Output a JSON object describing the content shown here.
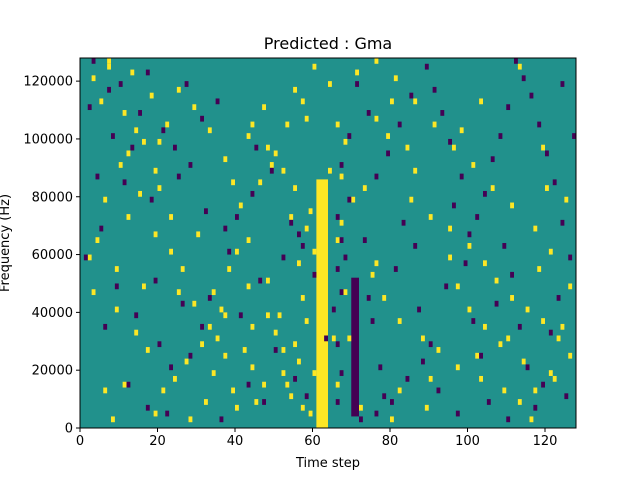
{
  "chart_data": {
    "type": "heatmap",
    "title": "Predicted : Gma",
    "xlabel": "Time step",
    "ylabel": "Frequency (Hz)",
    "xlim": [
      0,
      128
    ],
    "ylim": [
      0,
      128000
    ],
    "x_ticks": [
      0,
      20,
      40,
      60,
      80,
      100,
      120
    ],
    "y_ticks": [
      0,
      20000,
      40000,
      60000,
      80000,
      100000,
      120000
    ],
    "grid": false,
    "colormap": {
      "background": "#21918c",
      "high": "#fde725",
      "low": "#440154"
    },
    "n_time_steps": 128,
    "n_freq_bins": 64,
    "freq_bin_hz": 2000,
    "high_band": {
      "x_start": 61,
      "x_end": 64,
      "y_start_hz": 0,
      "y_end_hz": 86000
    },
    "low_band": {
      "x_start": 70,
      "x_end": 72,
      "y_start_hz": 4000,
      "y_end_hz": 52000
    },
    "cells_high": [
      [
        7,
        126000
      ],
      [
        7,
        124000
      ],
      [
        3,
        120000
      ],
      [
        5,
        112000
      ],
      [
        13,
        122000
      ],
      [
        18,
        114000
      ],
      [
        11,
        108000
      ],
      [
        14,
        102000
      ],
      [
        12,
        94000
      ],
      [
        10,
        90000
      ],
      [
        16,
        98000
      ],
      [
        20,
        98000
      ],
      [
        22,
        104000
      ],
      [
        19,
        88000
      ],
      [
        15,
        80000
      ],
      [
        20,
        82000
      ],
      [
        6,
        78000
      ],
      [
        12,
        72000
      ],
      [
        23,
        72000
      ],
      [
        30,
        66000
      ],
      [
        4,
        64000
      ],
      [
        2,
        58000
      ],
      [
        9,
        54000
      ],
      [
        16,
        48000
      ],
      [
        25,
        46000
      ],
      [
        29,
        42000
      ],
      [
        34,
        46000
      ],
      [
        38,
        54000
      ],
      [
        40,
        60000
      ],
      [
        43,
        64000
      ],
      [
        37,
        38000
      ],
      [
        33,
        34000
      ],
      [
        31,
        28000
      ],
      [
        27,
        22000
      ],
      [
        24,
        16000
      ],
      [
        21,
        12000
      ],
      [
        19,
        4000
      ],
      [
        6,
        12000
      ],
      [
        11,
        14000
      ],
      [
        35,
        30000
      ],
      [
        42,
        26000
      ],
      [
        44,
        20000
      ],
      [
        39,
        12000
      ],
      [
        40,
        6000
      ],
      [
        45,
        8000
      ],
      [
        47,
        14000
      ],
      [
        52,
        18000
      ],
      [
        55,
        28000
      ],
      [
        51,
        38000
      ],
      [
        57,
        44000
      ],
      [
        48,
        50000
      ],
      [
        56,
        56000
      ],
      [
        60,
        60000
      ],
      [
        58,
        68000
      ],
      [
        54,
        72000
      ],
      [
        46,
        84000
      ],
      [
        49,
        90000
      ],
      [
        50,
        94000
      ],
      [
        39,
        84000
      ],
      [
        41,
        76000
      ],
      [
        53,
        104000
      ],
      [
        57,
        112000
      ],
      [
        58,
        106000
      ],
      [
        66,
        104000
      ],
      [
        68,
        98000
      ],
      [
        76,
        106000
      ],
      [
        80,
        112000
      ],
      [
        79,
        100000
      ],
      [
        73,
        82000
      ],
      [
        85,
        78000
      ],
      [
        90,
        72000
      ],
      [
        95,
        68000
      ],
      [
        100,
        62000
      ],
      [
        104,
        56000
      ],
      [
        107,
        50000
      ],
      [
        111,
        44000
      ],
      [
        115,
        40000
      ],
      [
        119,
        36000
      ],
      [
        123,
        30000
      ],
      [
        126,
        24000
      ],
      [
        121,
        18000
      ],
      [
        117,
        12000
      ],
      [
        113,
        8000
      ],
      [
        109,
        12000
      ],
      [
        103,
        16000
      ],
      [
        97,
        20000
      ],
      [
        92,
        26000
      ],
      [
        88,
        30000
      ],
      [
        82,
        36000
      ],
      [
        78,
        44000
      ],
      [
        75,
        52000
      ],
      [
        76,
        56000
      ],
      [
        70,
        78000
      ],
      [
        67,
        86000
      ],
      [
        64,
        88000
      ],
      [
        66,
        64000
      ],
      [
        67,
        70000
      ],
      [
        68,
        46000
      ],
      [
        69,
        30000
      ],
      [
        66,
        14000
      ],
      [
        57,
        6000
      ],
      [
        59,
        4000
      ],
      [
        62,
        2000
      ],
      [
        72,
        6000
      ],
      [
        82,
        12000
      ],
      [
        90,
        16000
      ],
      [
        102,
        24000
      ],
      [
        110,
        30000
      ],
      [
        124,
        34000
      ],
      [
        126,
        48000
      ],
      [
        121,
        60000
      ],
      [
        117,
        68000
      ],
      [
        111,
        76000
      ],
      [
        106,
        82000
      ],
      [
        101,
        90000
      ],
      [
        96,
        96000
      ],
      [
        91,
        104000
      ],
      [
        86,
        112000
      ],
      [
        81,
        120000
      ],
      [
        76,
        126000
      ],
      [
        71,
        122000
      ],
      [
        64,
        118000
      ],
      [
        60,
        124000
      ],
      [
        55,
        116000
      ],
      [
        47,
        110000
      ],
      [
        43,
        100000
      ],
      [
        37,
        92000
      ],
      [
        33,
        102000
      ],
      [
        29,
        110000
      ],
      [
        25,
        116000
      ],
      [
        119,
        96000
      ],
      [
        120,
        82000
      ],
      [
        103,
        112000
      ],
      [
        98,
        102000
      ],
      [
        125,
        78000
      ],
      [
        118,
        54000
      ],
      [
        113,
        124000
      ],
      [
        84,
        96000
      ],
      [
        86,
        88000
      ],
      [
        95,
        58000
      ],
      [
        97,
        48000
      ],
      [
        100,
        40000
      ],
      [
        104,
        34000
      ],
      [
        108,
        28000
      ],
      [
        114,
        22000
      ],
      [
        122,
        16000
      ],
      [
        116,
        2000
      ],
      [
        89,
        6000
      ],
      [
        80,
        2000
      ],
      [
        65,
        30000
      ],
      [
        58,
        36000
      ],
      [
        56,
        22000
      ],
      [
        53,
        14000
      ],
      [
        44,
        34000
      ],
      [
        36,
        40000
      ],
      [
        26,
        54000
      ],
      [
        23,
        60000
      ],
      [
        19,
        66000
      ],
      [
        17,
        26000
      ],
      [
        14,
        32000
      ],
      [
        9,
        40000
      ],
      [
        3,
        46000
      ],
      [
        8,
        2000
      ],
      [
        28,
        2000
      ],
      [
        32,
        8000
      ],
      [
        34,
        18000
      ],
      [
        37,
        24000
      ],
      [
        43,
        48000
      ],
      [
        48,
        38000
      ],
      [
        50,
        32000
      ],
      [
        52,
        26000
      ],
      [
        54,
        10000
      ],
      [
        44,
        104000
      ],
      [
        48,
        96000
      ],
      [
        52,
        88000
      ],
      [
        55,
        82000
      ],
      [
        59,
        74000
      ],
      [
        60,
        18000
      ]
    ],
    "cells_low": [
      [
        3,
        126000
      ],
      [
        10,
        118000
      ],
      [
        2,
        110000
      ],
      [
        17,
        122000
      ],
      [
        8,
        100000
      ],
      [
        13,
        96000
      ],
      [
        21,
        102000
      ],
      [
        27,
        118000
      ],
      [
        31,
        106000
      ],
      [
        35,
        112000
      ],
      [
        11,
        84000
      ],
      [
        18,
        78000
      ],
      [
        25,
        86000
      ],
      [
        32,
        74000
      ],
      [
        37,
        68000
      ],
      [
        45,
        96000
      ],
      [
        49,
        88000
      ],
      [
        54,
        70000
      ],
      [
        57,
        62000
      ],
      [
        60,
        52000
      ],
      [
        5,
        68000
      ],
      [
        1,
        58000
      ],
      [
        9,
        48000
      ],
      [
        14,
        38000
      ],
      [
        20,
        28000
      ],
      [
        23,
        20000
      ],
      [
        6,
        34000
      ],
      [
        12,
        14000
      ],
      [
        17,
        6000
      ],
      [
        22,
        4000
      ],
      [
        28,
        24000
      ],
      [
        33,
        44000
      ],
      [
        38,
        60000
      ],
      [
        41,
        38000
      ],
      [
        46,
        50000
      ],
      [
        50,
        26000
      ],
      [
        55,
        16000
      ],
      [
        58,
        10000
      ],
      [
        63,
        30000
      ],
      [
        65,
        40000
      ],
      [
        68,
        58000
      ],
      [
        69,
        78000
      ],
      [
        73,
        64000
      ],
      [
        74,
        44000
      ],
      [
        75,
        36000
      ],
      [
        77,
        20000
      ],
      [
        78,
        10000
      ],
      [
        81,
        54000
      ],
      [
        83,
        70000
      ],
      [
        86,
        62000
      ],
      [
        87,
        40000
      ],
      [
        90,
        28000
      ],
      [
        92,
        12000
      ],
      [
        94,
        48000
      ],
      [
        96,
        76000
      ],
      [
        99,
        56000
      ],
      [
        101,
        36000
      ],
      [
        103,
        24000
      ],
      [
        105,
        8000
      ],
      [
        107,
        42000
      ],
      [
        109,
        62000
      ],
      [
        111,
        52000
      ],
      [
        113,
        34000
      ],
      [
        115,
        20000
      ],
      [
        117,
        6000
      ],
      [
        119,
        14000
      ],
      [
        121,
        32000
      ],
      [
        123,
        44000
      ],
      [
        126,
        58000
      ],
      [
        124,
        70000
      ],
      [
        122,
        84000
      ],
      [
        120,
        94000
      ],
      [
        118,
        104000
      ],
      [
        116,
        114000
      ],
      [
        114,
        120000
      ],
      [
        112,
        126000
      ],
      [
        110,
        110000
      ],
      [
        108,
        100000
      ],
      [
        106,
        92000
      ],
      [
        104,
        80000
      ],
      [
        102,
        72000
      ],
      [
        100,
        66000
      ],
      [
        98,
        86000
      ],
      [
        95,
        98000
      ],
      [
        93,
        108000
      ],
      [
        91,
        116000
      ],
      [
        89,
        124000
      ],
      [
        85,
        114000
      ],
      [
        82,
        104000
      ],
      [
        79,
        94000
      ],
      [
        76,
        86000
      ],
      [
        74,
        108000
      ],
      [
        71,
        118000
      ],
      [
        69,
        100000
      ],
      [
        67,
        90000
      ],
      [
        66,
        72000
      ],
      [
        67,
        64000
      ],
      [
        66,
        54000
      ],
      [
        67,
        46000
      ],
      [
        66,
        28000
      ],
      [
        67,
        18000
      ],
      [
        66,
        8000
      ],
      [
        72,
        2000
      ],
      [
        76,
        4000
      ],
      [
        80,
        8000
      ],
      [
        84,
        16000
      ],
      [
        88,
        22000
      ],
      [
        97,
        4000
      ],
      [
        110,
        2000
      ],
      [
        125,
        10000
      ],
      [
        127,
        100000
      ],
      [
        124,
        118000
      ],
      [
        31,
        34000
      ],
      [
        36,
        2000
      ],
      [
        43,
        14000
      ],
      [
        47,
        8000
      ],
      [
        52,
        58000
      ],
      [
        56,
        66000
      ],
      [
        40,
        72000
      ],
      [
        44,
        80000
      ],
      [
        28,
        90000
      ],
      [
        24,
        96000
      ],
      [
        15,
        108000
      ],
      [
        7,
        116000
      ],
      [
        4,
        86000
      ],
      [
        19,
        50000
      ],
      [
        26,
        42000
      ]
    ]
  }
}
